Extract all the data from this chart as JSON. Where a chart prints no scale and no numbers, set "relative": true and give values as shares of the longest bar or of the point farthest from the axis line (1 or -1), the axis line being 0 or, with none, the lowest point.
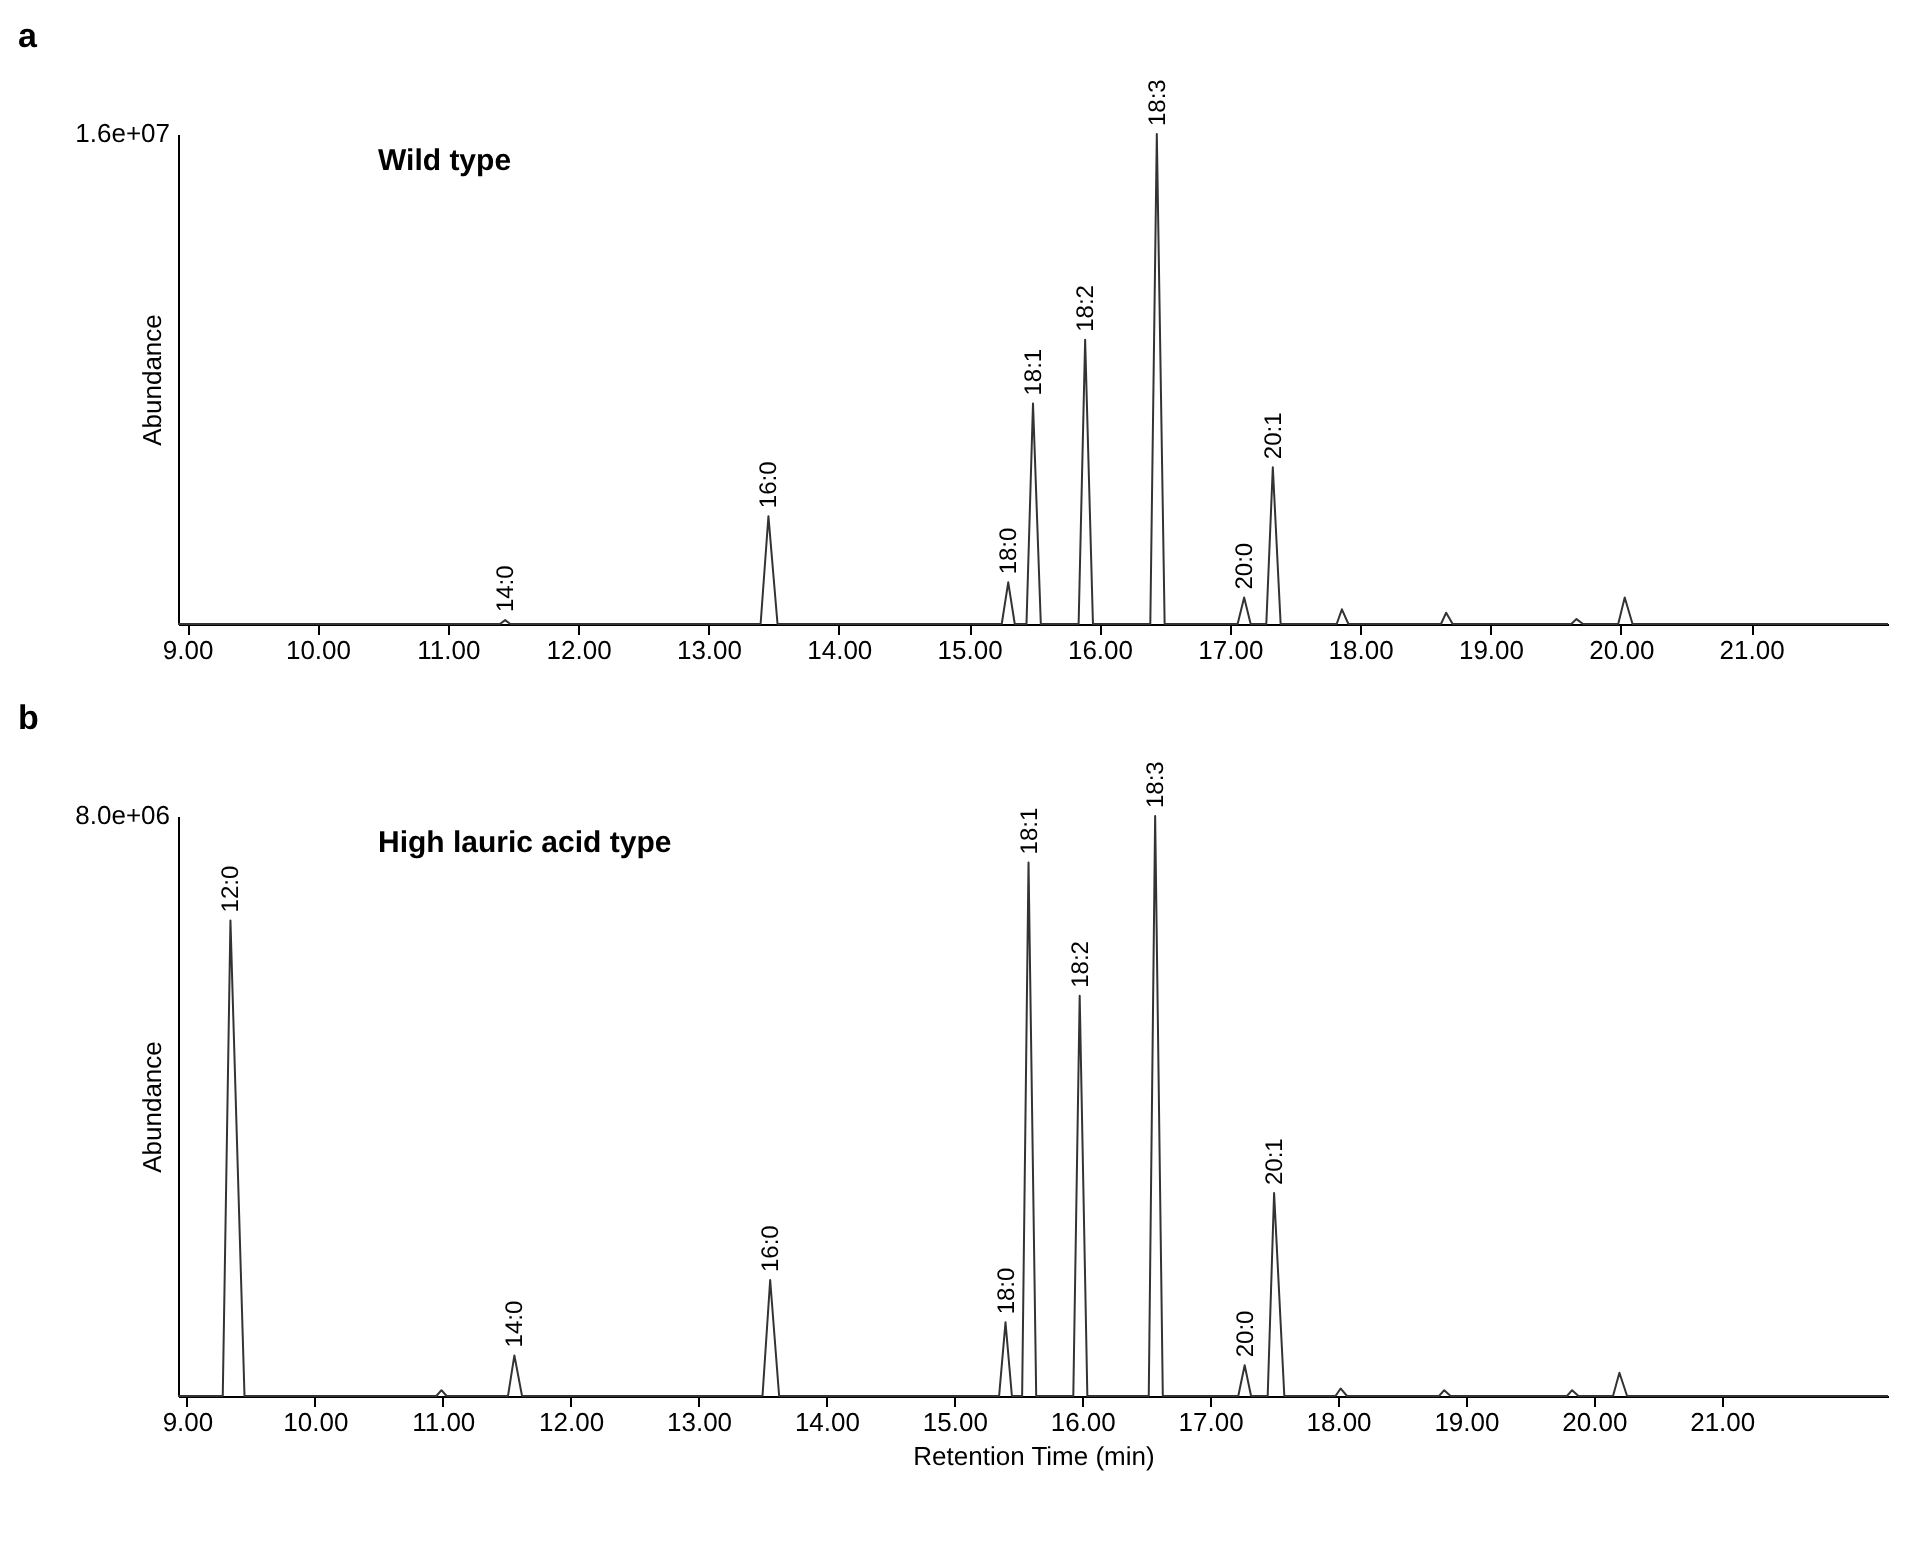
{
  "chart_data": [
    {
      "type": "line",
      "title": "a",
      "subtitle": "Wild type",
      "ylabel": "Abundance",
      "relative": true,
      "xlim": [
        8.93,
        22.05
      ],
      "xticks": [
        {
          "value": 9,
          "label": "9.00"
        },
        {
          "value": 10,
          "label": "10.00"
        },
        {
          "value": 11,
          "label": "11.00"
        },
        {
          "value": 12,
          "label": "12.00"
        },
        {
          "value": 13,
          "label": "13.00"
        },
        {
          "value": 14,
          "label": "14.00"
        },
        {
          "value": 15,
          "label": "15.00"
        },
        {
          "value": 16,
          "label": "16.00"
        },
        {
          "value": 17,
          "label": "17.00"
        },
        {
          "value": 18,
          "label": "18.00"
        },
        {
          "value": 19,
          "label": "19.00"
        },
        {
          "value": 20,
          "label": "20.00"
        },
        {
          "value": 21,
          "label": "21.00"
        }
      ],
      "series": [
        {
          "color": "#333333",
          "x": [
            8.93,
            11.4,
            11.44,
            11.48,
            13.4,
            13.46,
            13.53,
            15.25,
            15.3,
            15.35,
            15.44,
            15.49,
            15.55,
            15.84,
            15.89,
            15.95,
            16.39,
            16.44,
            16.5,
            17.06,
            17.11,
            17.16,
            17.28,
            17.33,
            17.39,
            17.82,
            17.86,
            17.91,
            18.62,
            18.66,
            18.71,
            19.62,
            19.66,
            19.71,
            19.98,
            20.03,
            20.09,
            22.05
          ],
          "values": [
            0,
            0,
            0.008,
            0,
            0,
            0.22,
            0,
            0,
            0.085,
            0,
            0,
            0.45,
            0,
            0,
            0.58,
            0,
            0,
            1,
            0,
            0,
            0.054,
            0,
            0,
            0.32,
            0,
            0,
            0.03,
            0,
            0,
            0.023,
            0,
            0,
            0.01,
            0,
            0,
            0.054,
            0,
            0
          ]
        }
      ],
      "annotations": [
        "1.6e+07",
        {
          "text": "14:0",
          "x": 11.44,
          "y": 0.008
        },
        {
          "text": "16:0",
          "x": 13.46,
          "y": 0.22
        },
        {
          "text": "18:0",
          "x": 15.3,
          "y": 0.085
        },
        {
          "text": "18:1",
          "x": 15.49,
          "y": 0.45
        },
        {
          "text": "18:2",
          "x": 15.89,
          "y": 0.58
        },
        {
          "text": "18:3",
          "x": 16.44,
          "y": 1
        },
        {
          "text": "20:0",
          "x": 17.11,
          "y": 0.054
        },
        {
          "text": "20:1",
          "x": 17.33,
          "y": 0.32
        }
      ]
    },
    {
      "type": "line",
      "title": "b",
      "subtitle": "High lauric acid type",
      "xlabel": "Retention Time (min)",
      "ylabel": "Abundance",
      "relative": true,
      "xlim": [
        8.93,
        22.3
      ],
      "xticks": [
        {
          "value": 9,
          "label": "9.00"
        },
        {
          "value": 10,
          "label": "10.00"
        },
        {
          "value": 11,
          "label": "11.00"
        },
        {
          "value": 12,
          "label": "12.00"
        },
        {
          "value": 13,
          "label": "13.00"
        },
        {
          "value": 14,
          "label": "14.00"
        },
        {
          "value": 15,
          "label": "15.00"
        },
        {
          "value": 16,
          "label": "16.00"
        },
        {
          "value": 17,
          "label": "17.00"
        },
        {
          "value": 18,
          "label": "18.00"
        },
        {
          "value": 19,
          "label": "19.00"
        },
        {
          "value": 20,
          "label": "20.00"
        },
        {
          "value": 21,
          "label": "21.00"
        }
      ],
      "series": [
        {
          "color": "#333333",
          "x": [
            8.93,
            9.28,
            9.34,
            9.45,
            10.95,
            10.99,
            11.03,
            11.51,
            11.56,
            11.62,
            13.5,
            13.56,
            13.63,
            15.35,
            15.4,
            15.45,
            15.53,
            15.58,
            15.64,
            15.93,
            15.98,
            16.04,
            16.52,
            16.57,
            16.63,
            17.22,
            17.27,
            17.32,
            17.45,
            17.5,
            17.58,
            17.98,
            18.02,
            18.07,
            18.79,
            18.83,
            18.88,
            19.79,
            19.83,
            19.88,
            20.15,
            20.2,
            20.26,
            22.3
          ],
          "values": [
            0,
            0,
            0.82,
            0,
            0,
            0.01,
            0,
            0,
            0.07,
            0,
            0,
            0.2,
            0,
            0,
            0.127,
            0,
            0,
            0.92,
            0,
            0,
            0.69,
            0,
            0,
            1,
            0,
            0,
            0.053,
            0,
            0,
            0.35,
            0,
            0,
            0.013,
            0,
            0,
            0.01,
            0,
            0,
            0.01,
            0,
            0,
            0.04,
            0,
            0
          ]
        }
      ],
      "annotations": [
        "8.0e+06",
        {
          "text": "12:0",
          "x": 9.34,
          "y": 0.82
        },
        {
          "text": "14:0",
          "x": 11.56,
          "y": 0.07
        },
        {
          "text": "16:0",
          "x": 13.56,
          "y": 0.2
        },
        {
          "text": "18:0",
          "x": 15.4,
          "y": 0.127
        },
        {
          "text": "18:1",
          "x": 15.58,
          "y": 0.92
        },
        {
          "text": "18:2",
          "x": 15.98,
          "y": 0.69
        },
        {
          "text": "18:3",
          "x": 16.57,
          "y": 1
        },
        {
          "text": "20:0",
          "x": 17.27,
          "y": 0.053
        },
        {
          "text": "20:1",
          "x": 17.5,
          "y": 0.35
        }
      ]
    }
  ]
}
